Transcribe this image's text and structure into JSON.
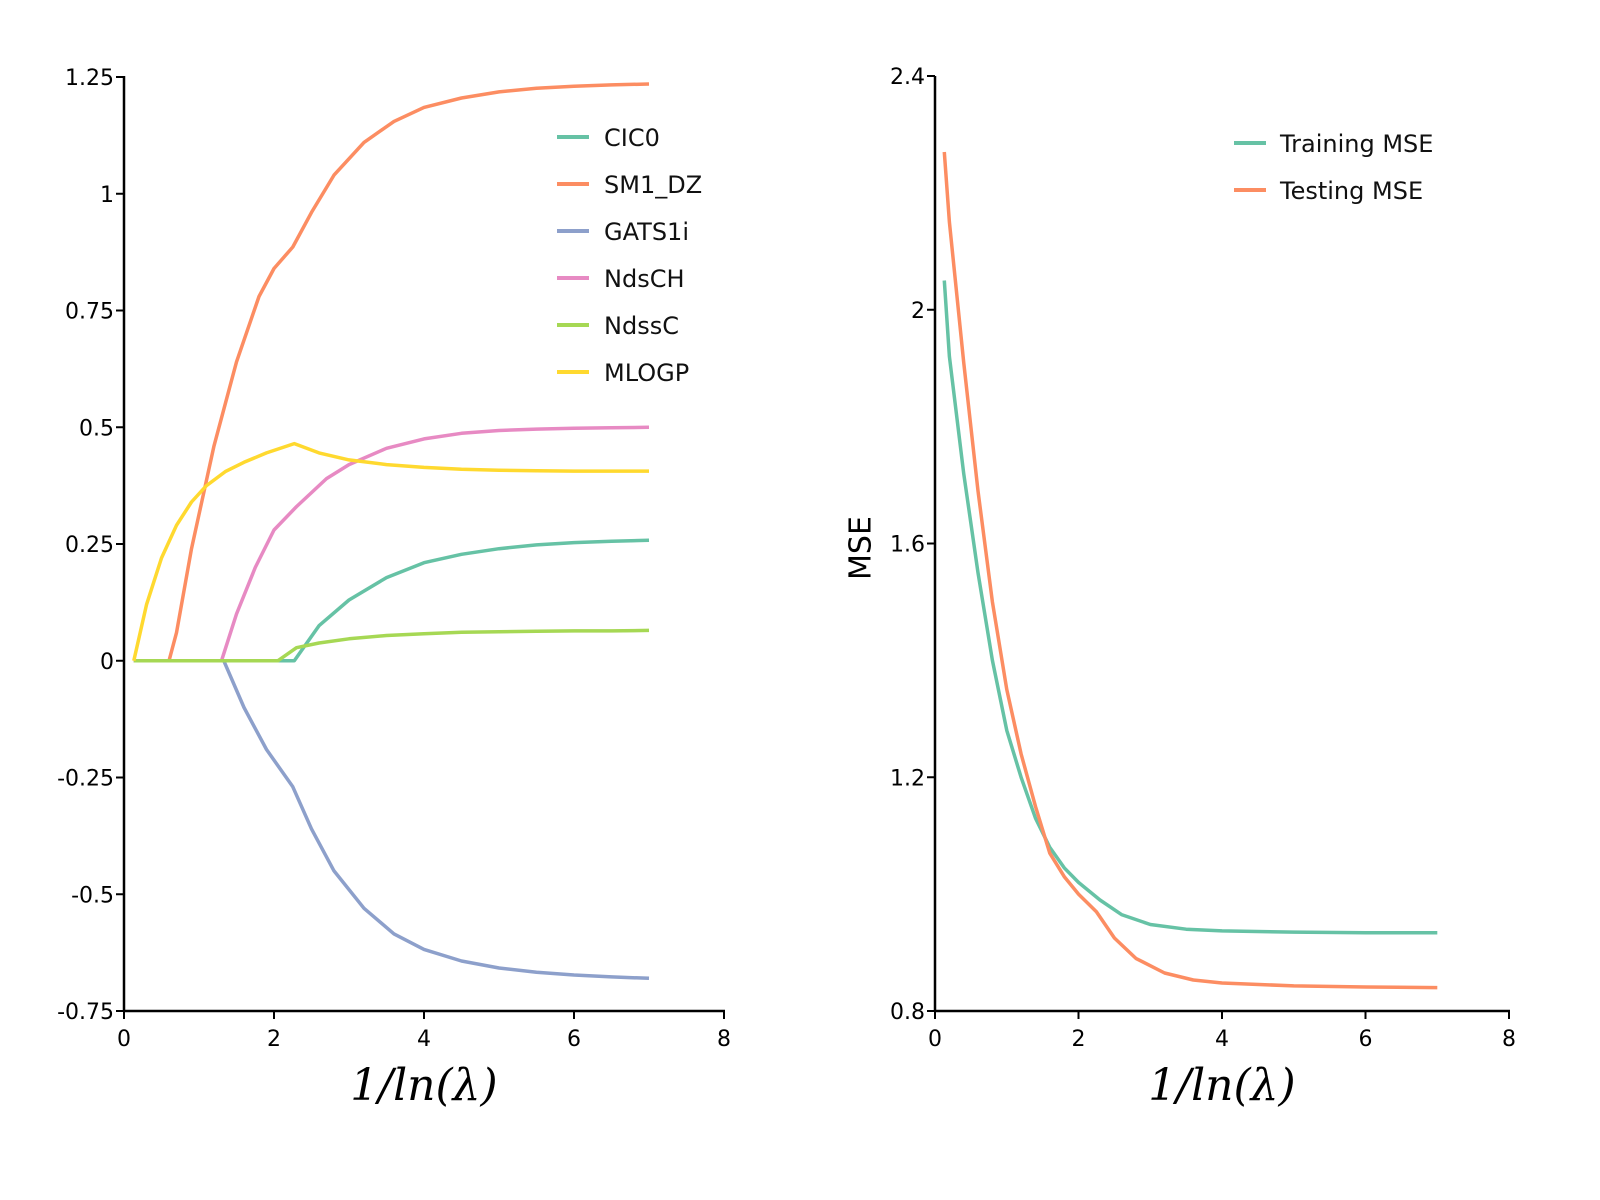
{
  "chart_data": [
    {
      "type": "line",
      "title": "",
      "xlabel": "1/ln(λ)",
      "ylabel": "",
      "xlim": [
        0,
        8
      ],
      "ylim": [
        -0.75,
        1.25
      ],
      "xticks": [
        0,
        2,
        4,
        6,
        8
      ],
      "xtick_labels": [
        "0",
        "2",
        "4",
        "6",
        "8"
      ],
      "yticks": [
        1.25,
        1,
        0.75,
        0.5,
        0.25,
        0,
        -0.25,
        -0.5,
        -0.75
      ],
      "ytick_labels": [
        "1.25",
        "1",
        "0.75",
        "0.5",
        "0.25",
        "0",
        "-0.25",
        "-0.5",
        "-0.75"
      ],
      "grid": false,
      "legend_position": "top-right",
      "series": [
        {
          "name": "CIC0",
          "color": "#66c2a5",
          "x": [
            0.13,
            1.0,
            2.0,
            2.27,
            2.6,
            3.0,
            3.5,
            4.0,
            4.5,
            5.0,
            5.5,
            6.0,
            6.5,
            7.0
          ],
          "y": [
            0,
            0,
            0,
            0,
            0.075,
            0.13,
            0.178,
            0.21,
            0.228,
            0.24,
            0.248,
            0.253,
            0.256,
            0.258
          ]
        },
        {
          "name": "SM1_DZ",
          "color": "#fc8d62",
          "x": [
            0.13,
            0.6,
            0.7,
            0.9,
            1.2,
            1.5,
            1.8,
            2.0,
            2.25,
            2.5,
            2.8,
            3.2,
            3.6,
            4.0,
            4.5,
            5.0,
            5.5,
            6.0,
            6.5,
            7.0
          ],
          "y": [
            0,
            0,
            0.06,
            0.24,
            0.46,
            0.64,
            0.78,
            0.84,
            0.886,
            0.96,
            1.04,
            1.11,
            1.155,
            1.185,
            1.205,
            1.218,
            1.226,
            1.23,
            1.233,
            1.235
          ]
        },
        {
          "name": "GATS1i",
          "color": "#8da0cb",
          "x": [
            0.13,
            1.0,
            1.33,
            1.6,
            1.9,
            2.25,
            2.5,
            2.8,
            3.2,
            3.6,
            4.0,
            4.5,
            5.0,
            5.5,
            6.0,
            6.5,
            7.0
          ],
          "y": [
            0,
            0,
            0,
            -0.1,
            -0.19,
            -0.27,
            -0.36,
            -0.45,
            -0.53,
            -0.585,
            -0.618,
            -0.643,
            -0.658,
            -0.667,
            -0.673,
            -0.677,
            -0.68
          ]
        },
        {
          "name": "NdsCH",
          "color": "#e78ac3",
          "x": [
            0.13,
            1.0,
            1.3,
            1.5,
            1.75,
            2.0,
            2.3,
            2.7,
            3.0,
            3.5,
            4.0,
            4.5,
            5.0,
            5.5,
            6.0,
            6.5,
            7.0
          ],
          "y": [
            0,
            0,
            0,
            0.1,
            0.2,
            0.28,
            0.33,
            0.39,
            0.42,
            0.455,
            0.475,
            0.487,
            0.493,
            0.496,
            0.498,
            0.499,
            0.5
          ]
        },
        {
          "name": "NdssC",
          "color": "#a6d854",
          "x": [
            0.13,
            1.0,
            2.05,
            2.3,
            2.6,
            3.0,
            3.5,
            4.0,
            4.5,
            5.0,
            5.5,
            6.0,
            6.5,
            7.0
          ],
          "y": [
            0,
            0,
            0,
            0.028,
            0.038,
            0.047,
            0.054,
            0.058,
            0.061,
            0.062,
            0.063,
            0.064,
            0.064,
            0.065
          ]
        },
        {
          "name": "MLOGP",
          "color": "#ffd92f",
          "x": [
            0.13,
            0.3,
            0.5,
            0.7,
            0.9,
            1.1,
            1.35,
            1.6,
            1.9,
            2.27,
            2.6,
            3.0,
            3.5,
            4.0,
            4.5,
            5.0,
            5.5,
            6.0,
            6.5,
            7.0
          ],
          "y": [
            0,
            0.12,
            0.22,
            0.29,
            0.34,
            0.375,
            0.405,
            0.425,
            0.445,
            0.465,
            0.445,
            0.43,
            0.42,
            0.414,
            0.41,
            0.408,
            0.407,
            0.406,
            0.406,
            0.406
          ]
        }
      ]
    },
    {
      "type": "line",
      "title": "",
      "xlabel": "1/ln(λ)",
      "ylabel": "MSE",
      "xlim": [
        0,
        8
      ],
      "ylim": [
        0.8,
        2.4
      ],
      "xticks": [
        0,
        2,
        4,
        6,
        8
      ],
      "xtick_labels": [
        "0",
        "2",
        "4",
        "6",
        "8"
      ],
      "yticks": [
        2.4,
        2,
        1.6,
        1.2,
        0.8
      ],
      "ytick_labels": [
        "2.4",
        "2",
        "1.6",
        "1.2",
        "0.8"
      ],
      "grid": false,
      "legend_position": "top-right",
      "series": [
        {
          "name": "Training MSE",
          "color": "#66c2a5",
          "x": [
            0.13,
            0.2,
            0.4,
            0.6,
            0.8,
            1.0,
            1.2,
            1.4,
            1.6,
            1.8,
            2.0,
            2.3,
            2.6,
            3.0,
            3.5,
            4.0,
            5.0,
            6.0,
            7.0
          ],
          "y": [
            2.05,
            1.92,
            1.72,
            1.55,
            1.4,
            1.28,
            1.2,
            1.13,
            1.08,
            1.045,
            1.02,
            0.99,
            0.965,
            0.948,
            0.94,
            0.937,
            0.935,
            0.934,
            0.934
          ]
        },
        {
          "name": "Testing MSE",
          "color": "#fc8d62",
          "x": [
            0.13,
            0.2,
            0.4,
            0.6,
            0.8,
            1.0,
            1.2,
            1.4,
            1.6,
            1.8,
            2.0,
            2.25,
            2.5,
            2.8,
            3.2,
            3.6,
            4.0,
            5.0,
            6.0,
            7.0
          ],
          "y": [
            2.27,
            2.15,
            1.91,
            1.69,
            1.5,
            1.35,
            1.24,
            1.15,
            1.07,
            1.03,
            1.0,
            0.97,
            0.925,
            0.89,
            0.865,
            0.853,
            0.848,
            0.843,
            0.841,
            0.84
          ]
        }
      ]
    }
  ]
}
